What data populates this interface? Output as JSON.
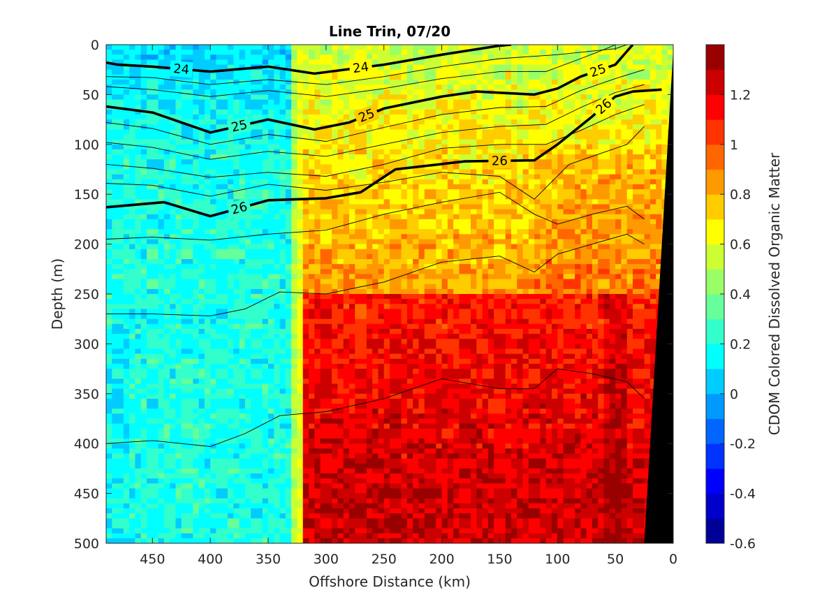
{
  "chart_data": {
    "type": "heatmap",
    "title": "Line Trin, 07/20",
    "xlabel": "Offshore Distance (km)",
    "ylabel": "Depth (m)",
    "colorbar_label": "CDOM Colored Dissolved Organic Matter",
    "xlim": [
      490,
      0
    ],
    "ylim": [
      0,
      500
    ],
    "clim": [
      -0.6,
      1.4
    ],
    "colormap": "jet",
    "x_ticks": [
      "450",
      "400",
      "350",
      "300",
      "250",
      "200",
      "150",
      "100",
      "50",
      "0"
    ],
    "x_tick_values": [
      450,
      400,
      350,
      300,
      250,
      200,
      150,
      100,
      50,
      0
    ],
    "y_ticks": [
      "0",
      "50",
      "100",
      "150",
      "200",
      "250",
      "300",
      "350",
      "400",
      "450",
      "500"
    ],
    "y_tick_values": [
      0,
      50,
      100,
      150,
      200,
      250,
      300,
      350,
      400,
      450,
      500
    ],
    "colorbar_ticks": [
      "-0.6",
      "-0.4",
      "-0.2",
      "0",
      "0.2",
      "0.4",
      "0.6",
      "0.8",
      "1",
      "1.2"
    ],
    "colorbar_tick_values": [
      -0.6,
      -0.4,
      -0.2,
      0,
      0.2,
      0.4,
      0.6,
      0.8,
      1.0,
      1.2
    ],
    "regions": [
      {
        "x_range": [
          490,
          330
        ],
        "cdom_surface": 0.1,
        "cdom_deep": 0.25
      },
      {
        "x_range": [
          330,
          25
        ],
        "cdom_surface": 0.55,
        "cdom_deep": 1.2
      }
    ],
    "bottom_topography": [
      [
        25,
        500
      ],
      [
        0,
        5
      ]
    ],
    "density_contours_bold": [
      {
        "label": "24",
        "points": [
          [
            490,
            18
          ],
          [
            480,
            20
          ],
          [
            450,
            22
          ],
          [
            400,
            27
          ],
          [
            350,
            22
          ],
          [
            310,
            29
          ],
          [
            290,
            26
          ],
          [
            250,
            20
          ],
          [
            200,
            10
          ],
          [
            150,
            1
          ],
          [
            140,
            0
          ]
        ]
      },
      {
        "label": "25",
        "points": [
          [
            490,
            62
          ],
          [
            450,
            68
          ],
          [
            400,
            88
          ],
          [
            350,
            75
          ],
          [
            310,
            85
          ],
          [
            280,
            78
          ],
          [
            250,
            64
          ],
          [
            200,
            52
          ],
          [
            170,
            47
          ],
          [
            120,
            50
          ],
          [
            100,
            44
          ],
          [
            80,
            32
          ],
          [
            50,
            20
          ],
          [
            35,
            0
          ]
        ]
      },
      {
        "label": "26",
        "points": [
          [
            490,
            163
          ],
          [
            440,
            158
          ],
          [
            400,
            172
          ],
          [
            350,
            156
          ],
          [
            300,
            154
          ],
          [
            270,
            148
          ],
          [
            240,
            125
          ],
          [
            180,
            117
          ],
          [
            120,
            116
          ],
          [
            100,
            100
          ],
          [
            70,
            72
          ],
          [
            50,
            52
          ],
          [
            35,
            47
          ],
          [
            10,
            45
          ]
        ]
      }
    ],
    "density_contours_thin": [
      {
        "points": [
          [
            490,
            32
          ],
          [
            450,
            33
          ],
          [
            400,
            40
          ],
          [
            350,
            35
          ],
          [
            300,
            40
          ],
          [
            250,
            32
          ],
          [
            200,
            22
          ],
          [
            150,
            14
          ],
          [
            100,
            10
          ],
          [
            50,
            4
          ],
          [
            40,
            0
          ]
        ]
      },
      {
        "points": [
          [
            490,
            42
          ],
          [
            450,
            45
          ],
          [
            400,
            52
          ],
          [
            350,
            46
          ],
          [
            300,
            52
          ],
          [
            250,
            44
          ],
          [
            200,
            34
          ],
          [
            150,
            27
          ],
          [
            110,
            27
          ],
          [
            80,
            14
          ],
          [
            60,
            5
          ],
          [
            50,
            0
          ]
        ]
      },
      {
        "points": [
          [
            490,
            78
          ],
          [
            450,
            84
          ],
          [
            400,
            100
          ],
          [
            350,
            90
          ],
          [
            300,
            97
          ],
          [
            250,
            83
          ],
          [
            200,
            70
          ],
          [
            150,
            63
          ],
          [
            110,
            62
          ],
          [
            80,
            46
          ],
          [
            50,
            34
          ],
          [
            25,
            25
          ]
        ]
      },
      {
        "points": [
          [
            490,
            98
          ],
          [
            450,
            103
          ],
          [
            400,
            115
          ],
          [
            350,
            107
          ],
          [
            300,
            112
          ],
          [
            250,
            100
          ],
          [
            200,
            88
          ],
          [
            150,
            82
          ],
          [
            110,
            80
          ],
          [
            80,
            63
          ],
          [
            50,
            48
          ],
          [
            25,
            40
          ]
        ]
      },
      {
        "points": [
          [
            490,
            120
          ],
          [
            450,
            124
          ],
          [
            400,
            133
          ],
          [
            350,
            128
          ],
          [
            300,
            132
          ],
          [
            250,
            120
          ],
          [
            200,
            104
          ],
          [
            150,
            100
          ],
          [
            110,
            100
          ],
          [
            80,
            86
          ],
          [
            50,
            70
          ],
          [
            25,
            60
          ]
        ]
      },
      {
        "points": [
          [
            490,
            139
          ],
          [
            450,
            141
          ],
          [
            400,
            152
          ],
          [
            350,
            140
          ],
          [
            300,
            146
          ],
          [
            250,
            138
          ],
          [
            200,
            128
          ],
          [
            150,
            132
          ],
          [
            120,
            155
          ],
          [
            90,
            120
          ],
          [
            60,
            108
          ],
          [
            40,
            100
          ],
          [
            25,
            82
          ]
        ]
      },
      {
        "points": [
          [
            490,
            195
          ],
          [
            450,
            193
          ],
          [
            400,
            196
          ],
          [
            350,
            190
          ],
          [
            300,
            186
          ],
          [
            250,
            170
          ],
          [
            200,
            158
          ],
          [
            150,
            148
          ],
          [
            120,
            170
          ],
          [
            100,
            180
          ],
          [
            70,
            170
          ],
          [
            40,
            162
          ],
          [
            25,
            175
          ]
        ]
      },
      {
        "points": [
          [
            490,
            270
          ],
          [
            450,
            270
          ],
          [
            400,
            272
          ],
          [
            370,
            265
          ],
          [
            340,
            248
          ],
          [
            300,
            250
          ],
          [
            250,
            238
          ],
          [
            200,
            218
          ],
          [
            150,
            212
          ],
          [
            120,
            228
          ],
          [
            100,
            210
          ],
          [
            70,
            200
          ],
          [
            40,
            190
          ],
          [
            25,
            200
          ]
        ]
      },
      {
        "points": [
          [
            490,
            400
          ],
          [
            450,
            397
          ],
          [
            400,
            403
          ],
          [
            370,
            390
          ],
          [
            340,
            372
          ],
          [
            300,
            368
          ],
          [
            250,
            355
          ],
          [
            200,
            335
          ],
          [
            150,
            345
          ],
          [
            120,
            345
          ],
          [
            100,
            325
          ],
          [
            70,
            330
          ],
          [
            40,
            338
          ],
          [
            25,
            355
          ]
        ]
      }
    ]
  }
}
